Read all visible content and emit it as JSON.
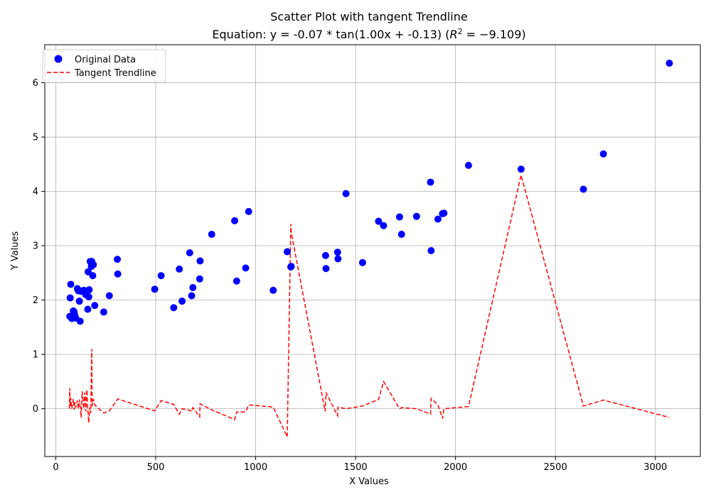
{
  "chart_data": {
    "type": "scatter",
    "title": "Scatter Plot with tangent Trendline",
    "subtitle": "Equation: y = -0.07 * tan(1.00x + -0.13) (",
    "subtitle_r2": "R",
    "subtitle_r2_sup": "2",
    "subtitle_r2_value": " = −9.109)",
    "xlabel": "X Values",
    "ylabel": "Y Values",
    "xlim": [
      -55,
      3225
    ],
    "ylim": [
      -0.88,
      6.7
    ],
    "xticks": [
      0,
      500,
      1000,
      1500,
      2000,
      2500,
      3000
    ],
    "yticks": [
      0,
      1,
      2,
      3,
      4,
      5,
      6
    ],
    "grid": true,
    "legend": {
      "placement": "top-left",
      "entries": [
        "Original Data",
        "Tangent Trendline"
      ]
    },
    "colors": {
      "points": "#0000ff",
      "trendline": "#ff0000"
    },
    "series": [
      {
        "name": "Original Data",
        "points": [
          [
            70,
            1.7
          ],
          [
            72,
            2.04
          ],
          [
            75,
            2.29
          ],
          [
            80,
            1.66
          ],
          [
            88,
            1.8
          ],
          [
            92,
            1.78
          ],
          [
            95,
            1.72
          ],
          [
            100,
            1.67
          ],
          [
            108,
            2.21
          ],
          [
            113,
            2.17
          ],
          [
            118,
            1.98
          ],
          [
            122,
            1.61
          ],
          [
            127,
            2.16
          ],
          [
            140,
            2.18
          ],
          [
            150,
            2.1
          ],
          [
            160,
            1.83
          ],
          [
            162,
            2.52
          ],
          [
            165,
            2.06
          ],
          [
            167,
            2.19
          ],
          [
            172,
            2.71
          ],
          [
            178,
            2.62
          ],
          [
            180,
            2.71
          ],
          [
            185,
            2.45
          ],
          [
            188,
            2.65
          ],
          [
            195,
            1.9
          ],
          [
            240,
            1.78
          ],
          [
            268,
            2.08
          ],
          [
            308,
            2.75
          ],
          [
            310,
            2.48
          ],
          [
            495,
            2.2
          ],
          [
            527,
            2.45
          ],
          [
            590,
            1.86
          ],
          [
            618,
            2.57
          ],
          [
            632,
            1.98
          ],
          [
            670,
            2.87
          ],
          [
            680,
            2.08
          ],
          [
            686,
            2.23
          ],
          [
            720,
            2.39
          ],
          [
            722,
            2.72
          ],
          [
            780,
            3.21
          ],
          [
            895,
            3.46
          ],
          [
            905,
            2.35
          ],
          [
            950,
            2.59
          ],
          [
            965,
            3.63
          ],
          [
            1088,
            2.18
          ],
          [
            1158,
            2.89
          ],
          [
            1176,
            2.61
          ],
          [
            1178,
            2.62
          ],
          [
            1350,
            2.82
          ],
          [
            1352,
            2.58
          ],
          [
            1410,
            2.88
          ],
          [
            1412,
            2.76
          ],
          [
            1452,
            3.96
          ],
          [
            1535,
            2.69
          ],
          [
            1615,
            3.45
          ],
          [
            1640,
            3.37
          ],
          [
            1720,
            3.53
          ],
          [
            1730,
            3.21
          ],
          [
            1805,
            3.54
          ],
          [
            1875,
            4.17
          ],
          [
            1878,
            2.91
          ],
          [
            1912,
            3.49
          ],
          [
            1935,
            3.59
          ],
          [
            1942,
            3.6
          ],
          [
            2065,
            4.48
          ],
          [
            2328,
            4.41
          ],
          [
            2640,
            4.04
          ],
          [
            2740,
            4.69
          ],
          [
            3070,
            6.36
          ]
        ]
      },
      {
        "name": "Tangent Trendline",
        "points": [
          [
            68,
            0.0
          ],
          [
            70,
            0.38
          ],
          [
            72,
            0.05
          ],
          [
            75,
            0.2
          ],
          [
            80,
            0.0
          ],
          [
            88,
            0.18
          ],
          [
            92,
            -0.02
          ],
          [
            95,
            0.12
          ],
          [
            100,
            0.02
          ],
          [
            108,
            0.15
          ],
          [
            113,
            0.0
          ],
          [
            118,
            0.17
          ],
          [
            122,
            0.04
          ],
          [
            127,
            -0.16
          ],
          [
            132,
            0.32
          ],
          [
            140,
            0.0
          ],
          [
            145,
            0.3
          ],
          [
            150,
            -0.05
          ],
          [
            155,
            0.35
          ],
          [
            160,
            0.0
          ],
          [
            165,
            -0.26
          ],
          [
            170,
            0.02
          ],
          [
            175,
            -0.08
          ],
          [
            180,
            1.1
          ],
          [
            182,
            0.05
          ],
          [
            188,
            0.18
          ],
          [
            195,
            0.07
          ],
          [
            240,
            -0.08
          ],
          [
            268,
            -0.04
          ],
          [
            310,
            0.18
          ],
          [
            495,
            -0.04
          ],
          [
            527,
            0.15
          ],
          [
            590,
            0.08
          ],
          [
            618,
            -0.1
          ],
          [
            632,
            0.0
          ],
          [
            670,
            -0.03
          ],
          [
            680,
            -0.05
          ],
          [
            686,
            0.02
          ],
          [
            720,
            -0.15
          ],
          [
            722,
            0.09
          ],
          [
            780,
            -0.02
          ],
          [
            895,
            -0.2
          ],
          [
            905,
            -0.06
          ],
          [
            950,
            -0.06
          ],
          [
            965,
            0.07
          ],
          [
            1088,
            0.03
          ],
          [
            1158,
            -0.52
          ],
          [
            1176,
            3.4
          ],
          [
            1178,
            3.25
          ],
          [
            1348,
            -0.05
          ],
          [
            1352,
            0.3
          ],
          [
            1410,
            -0.13
          ],
          [
            1412,
            0.03
          ],
          [
            1452,
            0.0
          ],
          [
            1535,
            0.05
          ],
          [
            1615,
            0.17
          ],
          [
            1640,
            0.5
          ],
          [
            1720,
            0.0
          ],
          [
            1730,
            0.02
          ],
          [
            1805,
            0.0
          ],
          [
            1875,
            -0.1
          ],
          [
            1878,
            0.19
          ],
          [
            1912,
            0.07
          ],
          [
            1935,
            -0.18
          ],
          [
            1942,
            0.0
          ],
          [
            2065,
            0.04
          ],
          [
            2328,
            4.3
          ],
          [
            2640,
            0.05
          ],
          [
            2740,
            0.16
          ],
          [
            3070,
            -0.16
          ]
        ]
      }
    ]
  }
}
